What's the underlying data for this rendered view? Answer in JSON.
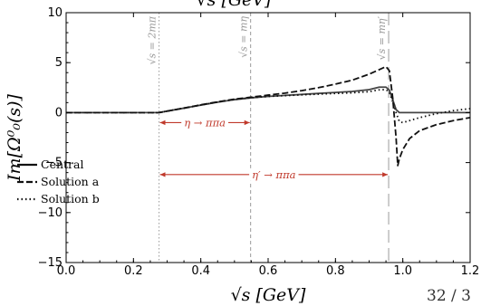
{
  "chart_data": {
    "type": "line",
    "xlabel": "√s [GeV]",
    "xlabel_top": "√s [GeV]",
    "ylabel": "Im[Ω⁰₀(s)]",
    "xlim": [
      0.0,
      1.2
    ],
    "ylim": [
      -15,
      10
    ],
    "xticks": [
      0.0,
      0.2,
      0.4,
      0.6,
      0.8,
      1.0,
      1.2
    ],
    "xtick_labels": [
      "0.0",
      "0.2",
      "0.4",
      "0.6",
      "0.8",
      "1.0",
      "1.2"
    ],
    "yticks": [
      -15,
      -10,
      -5,
      0,
      5,
      10
    ],
    "ytick_labels": [
      "−15",
      "−10",
      "−5",
      "0",
      "5",
      "10"
    ],
    "grid": false,
    "legend_position": "center-left",
    "series": [
      {
        "name": "Central",
        "style": "solid",
        "color": "#444444",
        "x": [
          0.0,
          0.2,
          0.276,
          0.3,
          0.35,
          0.4,
          0.45,
          0.5,
          0.55,
          0.6,
          0.65,
          0.7,
          0.75,
          0.8,
          0.85,
          0.9,
          0.93,
          0.95,
          0.96,
          0.97,
          0.98,
          0.99,
          1.0,
          1.05,
          1.1,
          1.2
        ],
        "y": [
          0.0,
          0.0,
          0.0,
          0.15,
          0.45,
          0.75,
          1.05,
          1.3,
          1.48,
          1.62,
          1.72,
          1.82,
          1.92,
          2.02,
          2.12,
          2.3,
          2.55,
          2.55,
          2.25,
          1.3,
          0.3,
          0.0,
          0.0,
          0.0,
          0.0,
          0.0
        ]
      },
      {
        "name": "Solution a",
        "style": "dashed",
        "color": "#111111",
        "x": [
          0.0,
          0.2,
          0.276,
          0.3,
          0.35,
          0.4,
          0.45,
          0.5,
          0.55,
          0.6,
          0.65,
          0.7,
          0.75,
          0.8,
          0.85,
          0.9,
          0.93,
          0.95,
          0.96,
          0.97,
          0.98,
          0.985,
          0.99,
          1.0,
          1.02,
          1.05,
          1.1,
          1.15,
          1.2
        ],
        "y": [
          0.0,
          0.0,
          0.0,
          0.15,
          0.45,
          0.78,
          1.08,
          1.35,
          1.55,
          1.75,
          1.95,
          2.2,
          2.5,
          2.85,
          3.25,
          3.85,
          4.3,
          4.6,
          4.2,
          1.5,
          -2.5,
          -5.3,
          -4.6,
          -3.7,
          -2.6,
          -1.8,
          -1.2,
          -0.8,
          -0.5
        ]
      },
      {
        "name": "Solution b",
        "style": "dotted",
        "color": "#111111",
        "x": [
          0.0,
          0.2,
          0.276,
          0.3,
          0.35,
          0.4,
          0.45,
          0.5,
          0.55,
          0.6,
          0.65,
          0.7,
          0.75,
          0.8,
          0.85,
          0.9,
          0.93,
          0.95,
          0.96,
          0.97,
          0.98,
          0.99,
          1.0,
          1.05,
          1.1,
          1.15,
          1.2
        ],
        "y": [
          0.0,
          0.0,
          0.0,
          0.15,
          0.45,
          0.76,
          1.06,
          1.32,
          1.5,
          1.62,
          1.7,
          1.78,
          1.85,
          1.92,
          1.98,
          2.1,
          2.28,
          2.3,
          2.05,
          1.1,
          0.0,
          -0.9,
          -1.0,
          -0.5,
          -0.1,
          0.2,
          0.4
        ]
      }
    ],
    "vertical_lines": [
      {
        "x": 0.276,
        "label": "√s = 2mπ",
        "style": "dotted"
      },
      {
        "x": 0.548,
        "label": "√s = mη",
        "style": "dashed"
      },
      {
        "x": 0.958,
        "label": "√s = mη′",
        "style": "longdash"
      }
    ],
    "annotations": [
      {
        "text": "η → ππa",
        "x_from": 0.276,
        "x_to": 0.548,
        "y": -6.5,
        "color": "#c0392b"
      },
      {
        "text": "η′ → ππa",
        "x_from": 0.276,
        "x_to": 0.958,
        "y": -6.5,
        "color": "#c0392b"
      }
    ]
  },
  "page_number": "32 / 3"
}
